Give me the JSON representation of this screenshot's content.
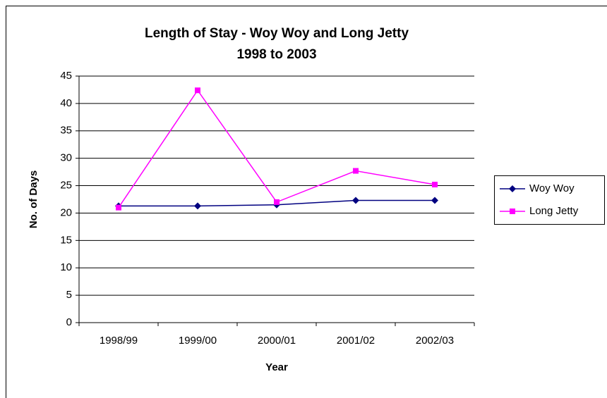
{
  "chart_data": {
    "type": "line",
    "title": [
      "Length of Stay - Woy Woy and Long Jetty",
      "1998 to 2003"
    ],
    "x_label": "Year",
    "y_label": "No. of Days",
    "categories": [
      "1998/99",
      "1999/00",
      "2000/01",
      "2001/02",
      "2002/03"
    ],
    "series": [
      {
        "name": "Woy Woy",
        "color": "#000080",
        "marker": "diamond",
        "values": [
          21.3,
          21.3,
          21.5,
          22.3,
          22.3
        ]
      },
      {
        "name": "Long Jetty",
        "color": "#ff00ff",
        "marker": "square",
        "values": [
          21,
          42.4,
          22,
          27.7,
          25.2
        ]
      }
    ],
    "ylim": [
      0,
      45
    ],
    "yticks": [
      0,
      5,
      10,
      15,
      20,
      25,
      30,
      35,
      40,
      45
    ],
    "grid": true,
    "legend": "right"
  }
}
